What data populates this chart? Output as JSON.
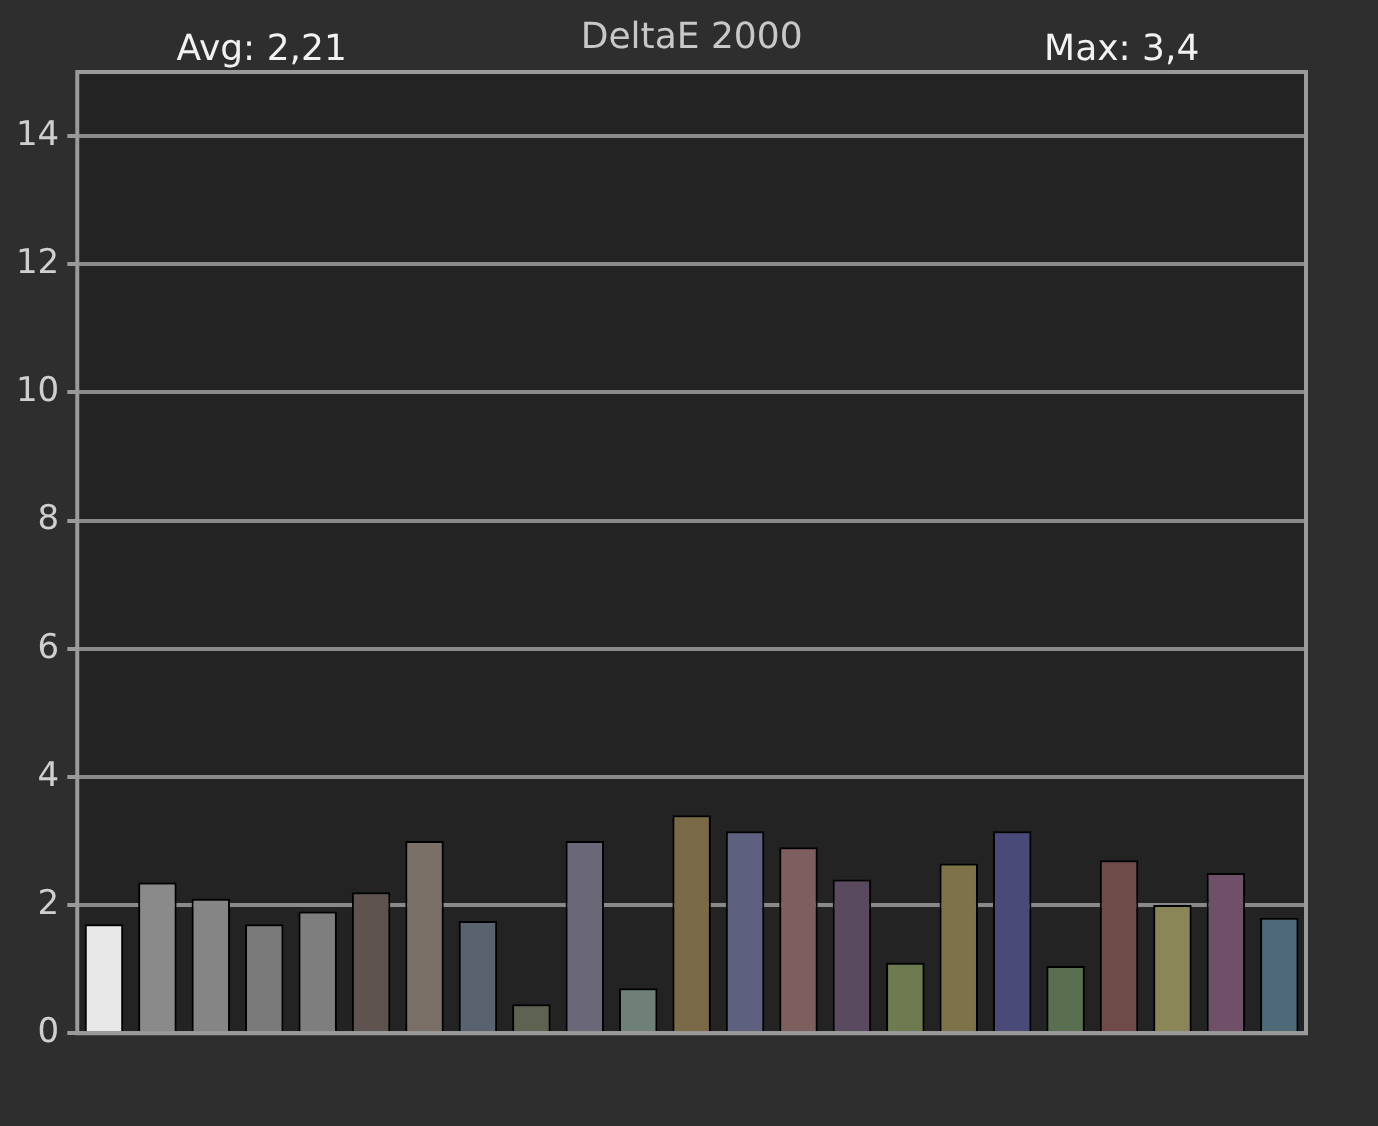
{
  "chart_data": {
    "type": "bar",
    "title": "DeltaE 2000",
    "annotations": [
      "Avg: 2,21",
      "Max: 3,4"
    ],
    "categories": [
      null,
      null,
      null,
      null,
      null,
      null,
      null,
      null,
      null,
      null,
      null,
      null,
      null,
      null,
      null,
      null,
      null,
      null,
      null,
      null,
      null,
      null,
      null
    ],
    "values": [
      1.7,
      2.35,
      2.1,
      1.7,
      1.9,
      2.2,
      3.0,
      1.75,
      0.45,
      3.0,
      0.7,
      3.4,
      3.15,
      2.9,
      2.4,
      1.1,
      2.65,
      3.15,
      1.05,
      2.7,
      2.0,
      2.5,
      1.8
    ],
    "colors": [
      "#e8e8e8",
      "#8a8a8a",
      "#858585",
      "#7a7a7a",
      "#7e7e7e",
      "#5e534e",
      "#7a7068",
      "#5a6270",
      "#5e6250",
      "#6a6878",
      "#6e8078",
      "#7a6a48",
      "#5e6080",
      "#7e5e5e",
      "#5a4a60",
      "#6e7a50",
      "#7e7248",
      "#4a4a78",
      "#5a6e50",
      "#6e4a48",
      "#8a8658",
      "#6e5068",
      "#4e6a78"
    ],
    "ylim": [
      0,
      15
    ],
    "yticks": [
      0,
      2,
      4,
      6,
      8,
      10,
      12,
      14
    ],
    "grid": "y"
  }
}
